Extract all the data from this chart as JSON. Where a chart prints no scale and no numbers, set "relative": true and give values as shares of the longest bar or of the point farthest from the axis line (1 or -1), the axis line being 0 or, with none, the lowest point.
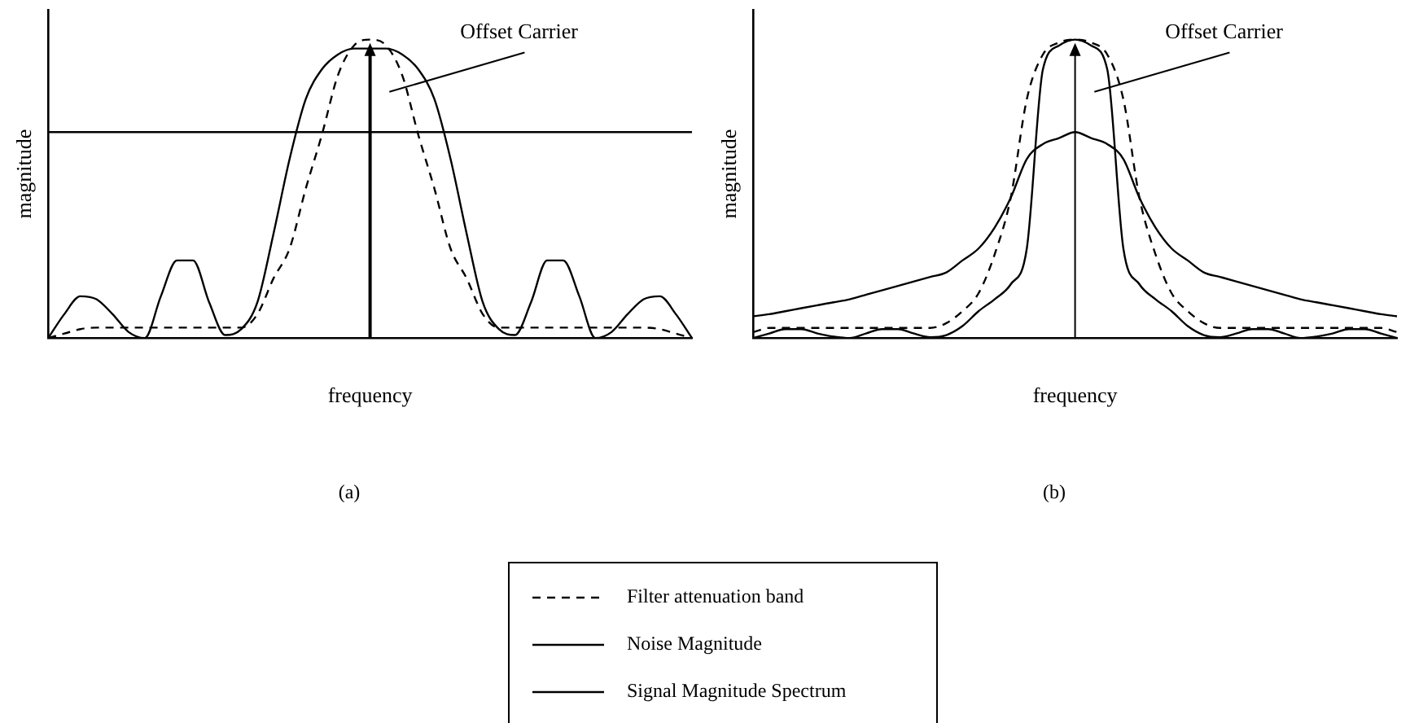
{
  "chart_data": [
    {
      "type": "line",
      "title": "(a)",
      "xlabel": "frequency",
      "ylabel": "magnitude",
      "relative": true,
      "marker": "none",
      "grid": false,
      "legend": "bottom",
      "categories": [
        null,
        null,
        null,
        null,
        null,
        null,
        null,
        null,
        null,
        null,
        null,
        null,
        null,
        null,
        null,
        null,
        null,
        null,
        null,
        null,
        null,
        null,
        null,
        null,
        null,
        null,
        null,
        null,
        null,
        null,
        null,
        null,
        null,
        null,
        null,
        null,
        null,
        null,
        null,
        null,
        null
      ],
      "annotations": [
        "Offset Carrier"
      ],
      "series": [
        {
          "name": "Filter attenuation band",
          "color": "#000000",
          "line_style": "dashed",
          "values": [
            0,
            0.015,
            0.03,
            0.035,
            0.035,
            0.035,
            0.035,
            0.035,
            0.035,
            0.035,
            0.035,
            0.035,
            0.035,
            0.08,
            0.2,
            0.3,
            0.5,
            0.68,
            0.88,
            0.98,
            1.0,
            0.98,
            0.88,
            0.68,
            0.5,
            0.3,
            0.2,
            0.08,
            0.035,
            0.035,
            0.035,
            0.035,
            0.035,
            0.035,
            0.035,
            0.035,
            0.035,
            0.035,
            0.03,
            0.015,
            0
          ]
        },
        {
          "name": "Noise Magnitude",
          "color": "#000000",
          "line_style": "solid",
          "values": [
            0.69,
            0.69,
            0.69,
            0.69,
            0.69,
            0.69,
            0.69,
            0.69,
            0.69,
            0.69,
            0.69,
            0.69,
            0.69,
            0.69,
            0.69,
            0.69,
            0.69,
            0.69,
            0.69,
            0.69,
            0.69,
            0.69,
            0.69,
            0.69,
            0.69,
            0.69,
            0.69,
            0.69,
            0.69,
            0.69,
            0.69,
            0.69,
            0.69,
            0.69,
            0.69,
            0.69,
            0.69,
            0.69,
            0.69,
            0.69,
            0.69
          ]
        },
        {
          "name": "Signal Magnitude Spectrum",
          "color": "#000000",
          "line_style": "solid",
          "values": [
            0,
            0.08,
            0.14,
            0.13,
            0.08,
            0.02,
            0,
            0.14,
            0.26,
            0.26,
            0.12,
            0.01,
            0.03,
            0.12,
            0.35,
            0.6,
            0.8,
            0.9,
            0.95,
            0.97,
            0.97,
            0.97,
            0.95,
            0.9,
            0.8,
            0.6,
            0.35,
            0.12,
            0.03,
            0.01,
            0.12,
            0.26,
            0.26,
            0.14,
            0,
            0.02,
            0.08,
            0.13,
            0.14,
            0.08,
            0
          ]
        }
      ]
    },
    {
      "type": "line",
      "title": "(b)",
      "xlabel": "frequency",
      "ylabel": "magnitude",
      "relative": true,
      "marker": "none",
      "grid": false,
      "categories": [
        null,
        null,
        null,
        null,
        null,
        null,
        null,
        null,
        null,
        null,
        null,
        null,
        null,
        null,
        null,
        null,
        null,
        null,
        null,
        null,
        null,
        null,
        null,
        null,
        null,
        null,
        null,
        null,
        null,
        null,
        null,
        null,
        null,
        null,
        null,
        null,
        null,
        null,
        null,
        null,
        null
      ],
      "annotations": [
        "Offset Carrier"
      ],
      "series": [
        {
          "color": "#000000",
          "line_style": "dashed",
          "values": [
            0.02,
            0.034,
            0.034,
            0.034,
            0.034,
            0.034,
            0.034,
            0.034,
            0.034,
            0.034,
            0.034,
            0.034,
            0.05,
            0.09,
            0.15,
            0.28,
            0.47,
            0.8,
            0.95,
            0.99,
            1.0,
            0.99,
            0.95,
            0.8,
            0.47,
            0.28,
            0.15,
            0.09,
            0.05,
            0.034,
            0.034,
            0.034,
            0.034,
            0.034,
            0.034,
            0.034,
            0.034,
            0.034,
            0.034,
            0.034,
            0.02
          ]
        },
        {
          "color": "#000000",
          "line_style": "solid",
          "values": [
            0.073,
            0.08,
            0.09,
            0.1,
            0.11,
            0.12,
            0.13,
            0.145,
            0.16,
            0.175,
            0.19,
            0.205,
            0.22,
            0.26,
            0.3,
            0.37,
            0.47,
            0.6,
            0.65,
            0.67,
            0.69,
            0.67,
            0.65,
            0.6,
            0.47,
            0.37,
            0.3,
            0.26,
            0.22,
            0.205,
            0.19,
            0.175,
            0.16,
            0.145,
            0.13,
            0.12,
            0.11,
            0.1,
            0.09,
            0.08,
            0.073
          ]
        },
        {
          "color": "#000000",
          "line_style": "solid",
          "values": [
            0,
            0.015,
            0.03,
            0.03,
            0.015,
            0.005,
            0,
            0.015,
            0.03,
            0.03,
            0.015,
            0.003,
            0.01,
            0.04,
            0.09,
            0.13,
            0.18,
            0.3,
            0.9,
            0.98,
            1.0,
            0.98,
            0.9,
            0.3,
            0.18,
            0.13,
            0.09,
            0.04,
            0.01,
            0.003,
            0.015,
            0.03,
            0.03,
            0.015,
            0,
            0.005,
            0.015,
            0.03,
            0.03,
            0.015,
            0
          ]
        }
      ]
    }
  ]
}
